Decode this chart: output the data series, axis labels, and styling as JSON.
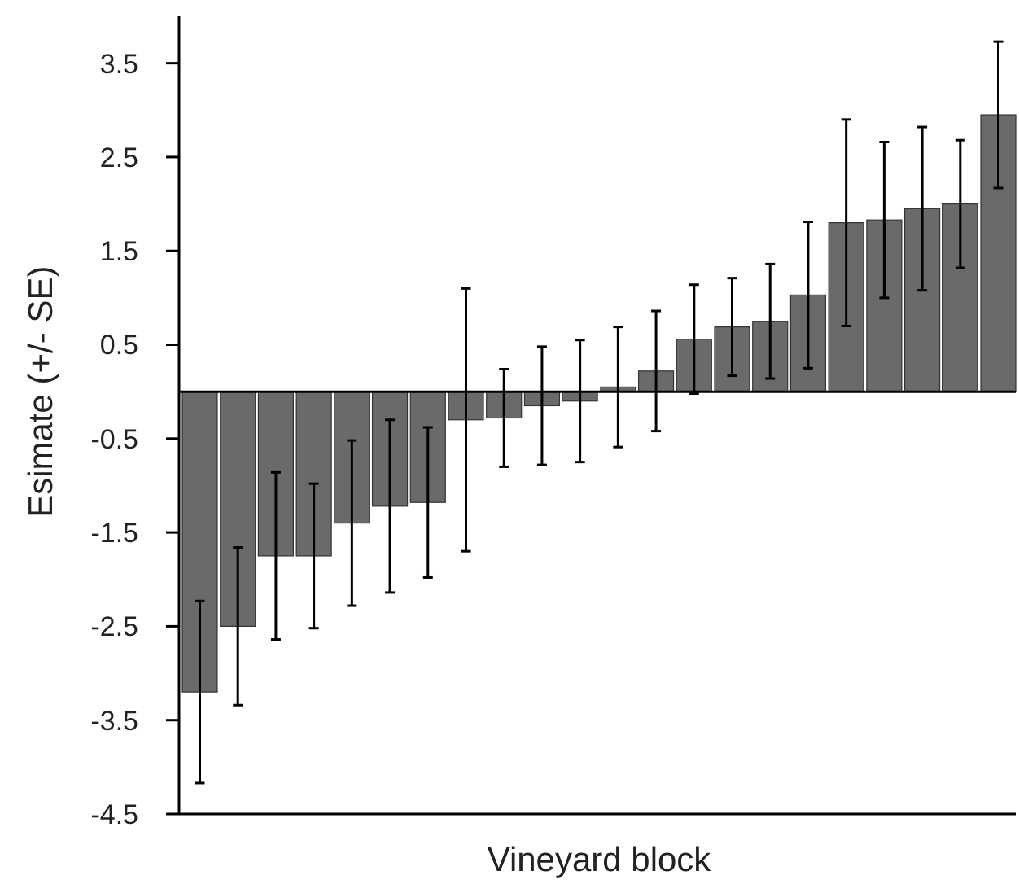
{
  "chart_data": {
    "type": "bar",
    "xlabel": "Vineyard block",
    "ylabel": "Esimate (+/- SE)",
    "categories": [
      null,
      null,
      null,
      null,
      null,
      null,
      null,
      null,
      null,
      null,
      null,
      null,
      null,
      null,
      null,
      null,
      null,
      null,
      null,
      null,
      null,
      null
    ],
    "values": [
      -3.2,
      -2.5,
      -1.75,
      -1.75,
      -1.4,
      -1.22,
      -1.18,
      -0.3,
      -0.28,
      -0.15,
      -0.1,
      0.05,
      0.22,
      0.56,
      0.69,
      0.75,
      1.03,
      1.8,
      1.83,
      1.95,
      2.0,
      2.95
    ],
    "errors": [
      0.97,
      0.84,
      0.89,
      0.77,
      0.88,
      0.92,
      0.8,
      1.4,
      0.52,
      0.63,
      0.65,
      0.64,
      0.64,
      0.58,
      0.52,
      0.61,
      0.78,
      1.1,
      0.83,
      0.87,
      0.68,
      0.78
    ],
    "color": "#6a6a6a",
    "ylim": [
      -4.5,
      4
    ],
    "yticks": [
      3.5,
      2.5,
      1.5,
      0.5,
      -0.5,
      -1.5,
      -2.5,
      -3.5,
      -4.5
    ],
    "tick_labels": "y"
  }
}
